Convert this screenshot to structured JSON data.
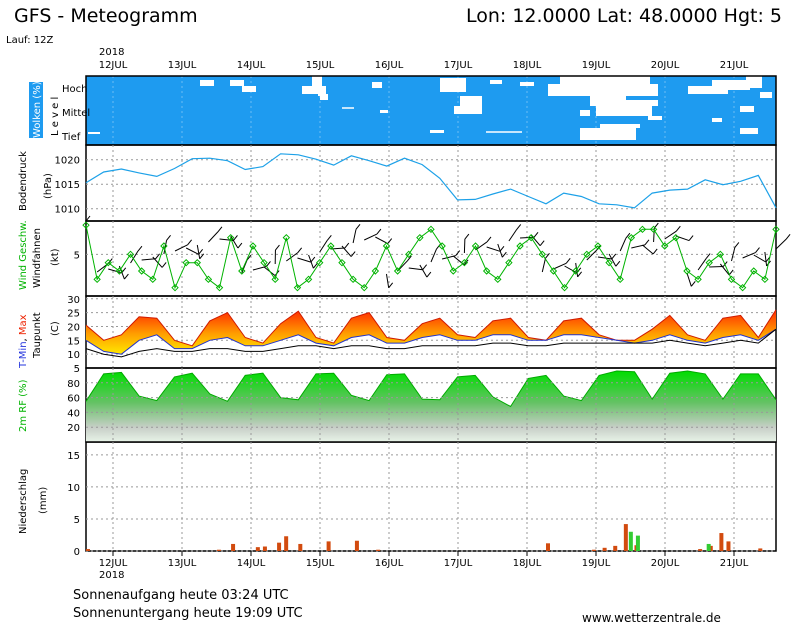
{
  "header": {
    "title": "GFS - Meteogramm",
    "location": "Lon: 12.0000 Lat: 48.0000 Hgt: 5",
    "run": "Lauf: 12Z",
    "year": "2018"
  },
  "colors": {
    "cloud_bg": "#1e9bf0",
    "pressure": "#1da1e8",
    "wind_speed": "#00b300",
    "temp_max_top": "#ff2200",
    "temp_max_bottom": "#ffe000",
    "rh": "#00cc00",
    "precip_conv": "#d24b0f",
    "precip_large": "#33cc33"
  },
  "chart_data": [
    {
      "type": "area",
      "panel": "clouds",
      "ylabel": "Wolken (%)",
      "ylabel_level": "L e v e l",
      "levels": [
        "Hoch",
        "Mittel",
        "Tief"
      ],
      "x": [
        "12JUL",
        "13JUL",
        "14JUL",
        "15JUL",
        "16JUL",
        "17JUL",
        "18JUL",
        "19JUL",
        "20JUL",
        "21JUL"
      ]
    },
    {
      "type": "line",
      "panel": "pressure",
      "ylabel": "Bodendruck",
      "yunit": "(hPa)",
      "yticks": [
        1010,
        1015,
        1020
      ],
      "ylim": [
        1007.5,
        1023
      ],
      "x_days": [
        0,
        0.25,
        0.5,
        0.75,
        1,
        1.25,
        1.5,
        1.75,
        2,
        2.25,
        2.5,
        2.75,
        3,
        3.25,
        3.5,
        3.75,
        4,
        4.25,
        4.5,
        4.75,
        5,
        5.25,
        5.5,
        5.75,
        6,
        6.25,
        6.5,
        6.75,
        7,
        7.25,
        7.5,
        7.75,
        8,
        8.25,
        8.5,
        8.75,
        9,
        9.25,
        9.5,
        9.75
      ],
      "values": [
        1015.3,
        1017.5,
        1018.1,
        1017.3,
        1016.6,
        1018.2,
        1020.2,
        1020.3,
        1019.8,
        1018.0,
        1018.6,
        1021.2,
        1021.0,
        1020.1,
        1018.9,
        1020.8,
        1019.8,
        1018.7,
        1020.3,
        1019.0,
        1016.2,
        1011.8,
        1011.9,
        1013.0,
        1014.0,
        1012.5,
        1011.0,
        1013.2,
        1012.5,
        1011.0,
        1010.8,
        1010.2,
        1013.2,
        1013.8,
        1014.0,
        1015.9,
        1014.9,
        1015.6,
        1016.8,
        1010.2
      ]
    },
    {
      "type": "line",
      "panel": "wind",
      "ylabel": "Wind Geschw.",
      "ylabel2": "Windfahnen",
      "yunit": "(kt)",
      "yticks": [
        5
      ],
      "ylim": [
        0,
        9
      ],
      "series": [
        {
          "name": "Wind Geschw.",
          "values": [
            8.5,
            2,
            4,
            3,
            5,
            3,
            2,
            6,
            1,
            4,
            4,
            2,
            1,
            7,
            3,
            6,
            4,
            2,
            7,
            1,
            2,
            4,
            6,
            4,
            2,
            1,
            3,
            6,
            3,
            5,
            7,
            8,
            6,
            3,
            4,
            6,
            3,
            2,
            4,
            6,
            7,
            5,
            3,
            1,
            3,
            5,
            6,
            4,
            2,
            7,
            8,
            8,
            6,
            7,
            3,
            2,
            4,
            5,
            2,
            1,
            3,
            2,
            8
          ]
        }
      ]
    },
    {
      "type": "area",
      "panel": "temperature",
      "ylabel_parts": [
        "T-Min",
        "Max"
      ],
      "ylabel2": "Taupunkt",
      "yunit": "(C)",
      "yticks": [
        5,
        10,
        15,
        20,
        25,
        30
      ],
      "ylim": [
        5,
        31
      ],
      "x_days": [
        0,
        0.25,
        0.5,
        0.75,
        1,
        1.25,
        1.5,
        1.75,
        2,
        2.25,
        2.5,
        2.75,
        3,
        3.25,
        3.5,
        3.75,
        4,
        4.25,
        4.5,
        4.75,
        5,
        5.25,
        5.5,
        5.75,
        6,
        6.25,
        6.5,
        6.75,
        7,
        7.25,
        7.5,
        7.75,
        8,
        8.25,
        8.5,
        8.75,
        9,
        9.25,
        9.5,
        9.75
      ],
      "series": [
        {
          "name": "Max",
          "values": [
            20.5,
            15,
            17,
            23.5,
            23,
            15,
            13,
            22,
            25,
            16,
            14,
            21,
            25.5,
            16,
            14,
            23,
            25,
            16,
            15,
            21,
            23,
            17,
            16,
            22,
            23,
            16,
            15,
            22,
            23,
            17,
            15,
            15,
            19,
            24,
            17,
            15,
            23,
            24,
            16,
            26
          ]
        },
        {
          "name": "Min",
          "values": [
            15,
            11,
            10,
            15,
            17,
            12,
            12,
            15,
            16,
            13,
            13,
            15,
            17,
            14,
            13,
            16,
            17,
            14,
            14,
            16,
            17,
            15,
            15,
            17,
            17,
            15,
            15,
            17,
            17,
            16,
            15,
            14,
            15,
            17,
            15,
            14,
            16,
            17,
            15,
            19
          ]
        },
        {
          "name": "Taupunkt",
          "values": [
            12,
            10,
            9,
            11,
            12,
            11,
            11,
            12,
            12,
            11,
            11,
            12,
            13,
            13,
            12,
            13,
            13,
            12,
            12,
            13,
            13,
            13,
            13,
            14,
            14,
            13,
            13,
            14,
            14,
            14,
            14,
            14,
            14,
            15,
            14,
            13,
            14,
            15,
            14,
            19
          ]
        }
      ]
    },
    {
      "type": "area",
      "panel": "humidity",
      "ylabel": "2m RF (%)",
      "yticks": [
        20,
        40,
        60,
        80
      ],
      "ylim": [
        0,
        100
      ],
      "x_days": [
        0,
        0.25,
        0.5,
        0.75,
        1,
        1.25,
        1.5,
        1.75,
        2,
        2.25,
        2.5,
        2.75,
        3,
        3.25,
        3.5,
        3.75,
        4,
        4.25,
        4.5,
        4.75,
        5,
        5.25,
        5.5,
        5.75,
        6,
        6.25,
        6.5,
        6.75,
        7,
        7.25,
        7.5,
        7.75,
        8,
        8.25,
        8.5,
        8.75,
        9,
        9.25,
        9.5,
        9.75
      ],
      "values": [
        55,
        92,
        94,
        62,
        56,
        88,
        93,
        65,
        55,
        90,
        93,
        60,
        57,
        92,
        93,
        63,
        56,
        91,
        92,
        58,
        57,
        88,
        90,
        61,
        48,
        86,
        90,
        62,
        56,
        90,
        96,
        95,
        58,
        93,
        96,
        92,
        58,
        92,
        92,
        57
      ]
    },
    {
      "type": "bar",
      "panel": "precipitation",
      "ylabel": "Niederschlag",
      "yunit": "(mm)",
      "yticks": [
        0,
        5,
        10,
        15
      ],
      "ylim": [
        0,
        17
      ],
      "series": [
        {
          "name": "conv",
          "x_days": [
            0,
            1.85,
            2.05,
            2.4,
            2.5,
            2.7,
            2.8,
            3.0,
            3.4,
            3.8,
            4.1,
            6.5,
            7.15,
            7.3,
            7.45,
            7.6,
            7.75,
            8.65,
            8.8,
            8.95,
            9.05,
            9.5
          ],
          "values": [
            0.3,
            0.2,
            1.1,
            0.6,
            0.7,
            1.3,
            2.3,
            1.1,
            1.5,
            1.6,
            0.2,
            1.2,
            0.2,
            0.5,
            0.8,
            4.2,
            0.9,
            0.3,
            0.8,
            2.8,
            1.5,
            0.4
          ]
        },
        {
          "name": "large",
          "x_days": [
            7.6,
            7.7,
            8.7
          ],
          "values": [
            3.0,
            2.4,
            1.1
          ]
        }
      ]
    }
  ],
  "x_axis": {
    "ticks": [
      "12JUL",
      "13JUL",
      "14JUL",
      "15JUL",
      "16JUL",
      "17JUL",
      "18JUL",
      "19JUL",
      "20JUL",
      "21JUL"
    ]
  },
  "footer": {
    "sunrise": "Sonnenaufgang heute 03:24 UTC",
    "sunset": "Sonnenuntergang heute 19:09 UTC",
    "site": "www.wetterzentrale.de"
  }
}
